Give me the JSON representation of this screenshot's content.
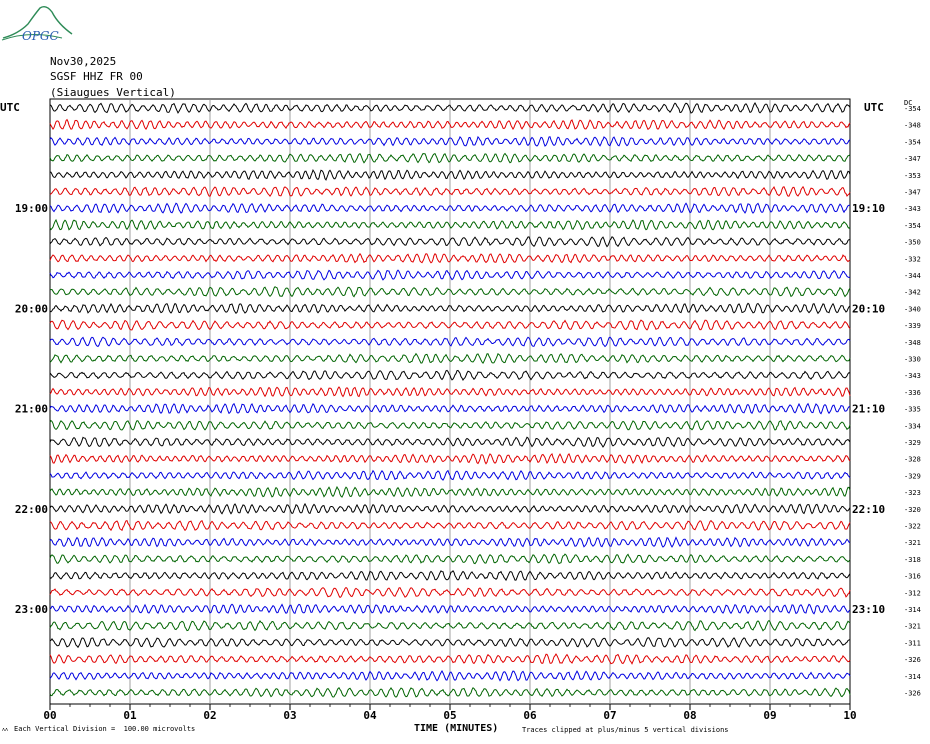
{
  "logo": {
    "text": "OPGC",
    "name": "opgc-logo"
  },
  "header": {
    "date": "Nov30,2025",
    "station": "SGSF HHZ FR 00",
    "component": "(Siaugues Vertical)"
  },
  "left_axis_label": "UTC",
  "right_axis_label": "UTC",
  "dc_label": "DC",
  "footer": {
    "tiny_mark": "ʌʌ",
    "scale_note": "Each Vertical Division =  100.00 microvolts",
    "xlabel": "TIME (MINUTES)",
    "clip_note": "Traces clipped at plus/minus 5 vertical divisions"
  },
  "colors": {
    "cycle": [
      "#000000",
      "#e00000",
      "#0000e0",
      "#006400"
    ],
    "grid": "#888888"
  },
  "chart_data": {
    "type": "line",
    "title": "SGSF HHZ FR 00 (Siaugues Vertical)",
    "xlabel": "TIME (MINUTES)",
    "x_ticks": [
      "00",
      "01",
      "02",
      "03",
      "04",
      "05",
      "06",
      "07",
      "08",
      "09",
      "10"
    ],
    "xlim": [
      0,
      10
    ],
    "rows_per_hour": 6,
    "left_hour_labels": [
      {
        "row": 6,
        "label": "19:00"
      },
      {
        "row": 12,
        "label": "20:00"
      },
      {
        "row": 18,
        "label": "21:00"
      },
      {
        "row": 24,
        "label": "22:00"
      },
      {
        "row": 30,
        "label": "23:00"
      }
    ],
    "right_time_labels": [
      {
        "row": 6,
        "label": "19:10"
      },
      {
        "row": 12,
        "label": "20:10"
      },
      {
        "row": 18,
        "label": "21:10"
      },
      {
        "row": 24,
        "label": "22:10"
      },
      {
        "row": 30,
        "label": "23:10"
      }
    ],
    "dc_offsets": [
      "-354",
      "-348",
      "-354",
      "-347",
      "-353",
      "-347",
      "-343",
      "-354",
      "-350",
      "-332",
      "-344",
      "-342",
      "-340",
      "-339",
      "-348",
      "-330",
      "-343",
      "-336",
      "-335",
      "-334",
      "-329",
      "-328",
      "-329",
      "-323",
      "-320",
      "-322",
      "-321",
      "-318",
      "-316",
      "-312",
      "-314",
      "-321",
      "-311",
      "-326",
      "-314",
      "-326"
    ],
    "amplitude_note": "Each Vertical Division =  100.00 microvolts",
    "clip_note": "Traces clipped at plus/minus 5 vertical divisions"
  }
}
